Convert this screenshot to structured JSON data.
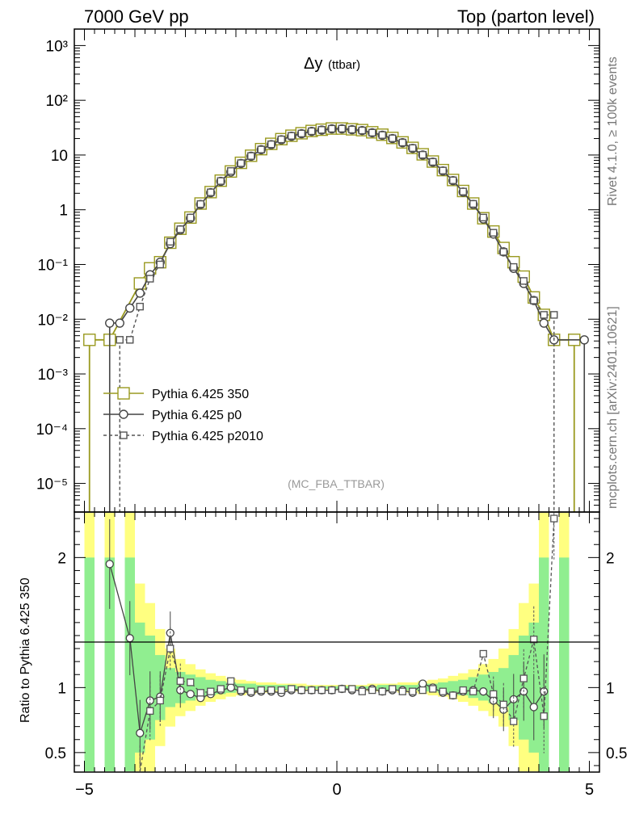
{
  "header": {
    "left": "7000 GeV pp",
    "right": "Top (parton level)"
  },
  "plot_title": "Δy",
  "plot_title_sub": "(ttbar)",
  "analysis_tag": "(MC_FBA_TTBAR)",
  "side_label_top": "Rivet 4.1.0, ≥ 100k events",
  "side_label_bottom": "mcplots.cern.ch [arXiv:2401.10621]",
  "colors": {
    "ref": "#9a9a20",
    "p0": "#444444",
    "p2010": "#555555",
    "band_inner": "#90ee90",
    "band_outer": "#ffff80"
  },
  "chart_data": [
    {
      "type": "line",
      "panel": "main",
      "title": "Δy (ttbar)",
      "xlabel": "",
      "ylabel": "",
      "xlim": [
        -5.2,
        5.2
      ],
      "ylim": [
        3e-06,
        2000
      ],
      "yscale": "log",
      "x_ticks": [
        -5,
        0,
        5
      ],
      "y_tick_labels": [
        "10⁻⁵",
        "10⁻⁴",
        "10⁻³",
        "10⁻²",
        "10⁻¹",
        "1",
        "10",
        "10²",
        "10³"
      ],
      "legend": {
        "placement": "lower-left",
        "entries": [
          "Pythia 6.425 350",
          "Pythia 6.425 p0",
          "Pythia 6.425 p2010"
        ]
      },
      "series": [
        {
          "name": "Pythia 6.425 350",
          "style": "solid-square",
          "points": [
            [
              -4.9,
              0.0042
            ],
            [
              -4.5,
              0.0042
            ],
            [
              -3.9,
              0.045
            ],
            [
              -3.7,
              0.085
            ],
            [
              -3.5,
              0.11
            ],
            [
              -3.3,
              0.25
            ],
            [
              -3.1,
              0.45
            ],
            [
              -2.9,
              0.72
            ],
            [
              -2.7,
              1.3
            ],
            [
              -2.5,
              2.1
            ],
            [
              -2.3,
              3.4
            ],
            [
              -2.1,
              5.0
            ],
            [
              -1.9,
              7.2
            ],
            [
              -1.7,
              9.7
            ],
            [
              -1.5,
              12.8
            ],
            [
              -1.3,
              16.0
            ],
            [
              -1.1,
              19.5
            ],
            [
              -0.9,
              22.5
            ],
            [
              -0.7,
              25.0
            ],
            [
              -0.5,
              27.5
            ],
            [
              -0.3,
              29.0
            ],
            [
              -0.1,
              30.5
            ],
            [
              0.1,
              30.5
            ],
            [
              0.3,
              29.5
            ],
            [
              0.5,
              28.5
            ],
            [
              0.7,
              26.0
            ],
            [
              0.9,
              23.5
            ],
            [
              1.1,
              20.5
            ],
            [
              1.3,
              17.0
            ],
            [
              1.5,
              13.5
            ],
            [
              1.7,
              10.3
            ],
            [
              1.9,
              7.6
            ],
            [
              2.1,
              5.3
            ],
            [
              2.3,
              3.5
            ],
            [
              2.5,
              2.2
            ],
            [
              2.7,
              1.3
            ],
            [
              2.9,
              0.7
            ],
            [
              3.1,
              0.4
            ],
            [
              3.3,
              0.2
            ],
            [
              3.5,
              0.11
            ],
            [
              3.7,
              0.06
            ],
            [
              3.9,
              0.025
            ],
            [
              4.1,
              0.012
            ],
            [
              4.3,
              0.0042
            ],
            [
              4.7,
              0.0042
            ]
          ]
        },
        {
          "name": "Pythia 6.425 p0",
          "style": "solid-circle",
          "points": [
            [
              -4.5,
              0.0085
            ],
            [
              -4.3,
              0.0085
            ],
            [
              -4.1,
              0.016
            ],
            [
              -3.9,
              0.03
            ],
            [
              -3.7,
              0.065
            ],
            [
              -3.5,
              0.11
            ],
            [
              -3.3,
              0.24
            ],
            [
              -3.1,
              0.43
            ],
            [
              -2.9,
              0.7
            ],
            [
              -2.7,
              1.25
            ],
            [
              -2.5,
              2.05
            ],
            [
              -2.3,
              3.3
            ],
            [
              -2.1,
              4.9
            ],
            [
              -1.9,
              7.0
            ],
            [
              -1.7,
              9.5
            ],
            [
              -1.5,
              12.5
            ],
            [
              -1.3,
              15.5
            ],
            [
              -1.1,
              19.0
            ],
            [
              -0.9,
              22.0
            ],
            [
              -0.7,
              24.5
            ],
            [
              -0.5,
              27.0
            ],
            [
              -0.3,
              28.5
            ],
            [
              -0.1,
              30.0
            ],
            [
              0.1,
              30.0
            ],
            [
              0.3,
              29.0
            ],
            [
              0.5,
              28.0
            ],
            [
              0.7,
              25.5
            ],
            [
              0.9,
              23.0
            ],
            [
              1.1,
              20.0
            ],
            [
              1.3,
              16.8
            ],
            [
              1.5,
              13.2
            ],
            [
              1.7,
              10.0
            ],
            [
              1.9,
              7.4
            ],
            [
              2.1,
              5.1
            ],
            [
              2.3,
              3.4
            ],
            [
              2.5,
              2.1
            ],
            [
              2.7,
              1.25
            ],
            [
              2.9,
              0.68
            ],
            [
              3.1,
              0.36
            ],
            [
              3.3,
              0.17
            ],
            [
              3.5,
              0.085
            ],
            [
              3.7,
              0.045
            ],
            [
              3.9,
              0.022
            ],
            [
              4.1,
              0.0085
            ],
            [
              4.3,
              0.0042
            ],
            [
              4.9,
              0.0042
            ]
          ]
        },
        {
          "name": "Pythia 6.425 p2010",
          "style": "dashed-square",
          "points": [
            [
              -4.3,
              0.0042
            ],
            [
              -4.1,
              0.0042
            ],
            [
              -3.9,
              0.017
            ],
            [
              -3.7,
              0.055
            ],
            [
              -3.5,
              0.1
            ],
            [
              -3.3,
              0.26
            ],
            [
              -3.1,
              0.44
            ],
            [
              -2.9,
              0.72
            ],
            [
              -2.7,
              1.27
            ],
            [
              -2.5,
              2.08
            ],
            [
              -2.3,
              3.35
            ],
            [
              -2.1,
              5.1
            ],
            [
              -1.9,
              7.1
            ],
            [
              -1.7,
              9.6
            ],
            [
              -1.5,
              12.6
            ],
            [
              -1.3,
              15.7
            ],
            [
              -1.1,
              19.3
            ],
            [
              -0.9,
              22.4
            ],
            [
              -0.7,
              24.7
            ],
            [
              -0.5,
              27.2
            ],
            [
              -0.3,
              28.8
            ],
            [
              -0.1,
              30.2
            ],
            [
              0.1,
              30.3
            ],
            [
              0.3,
              29.2
            ],
            [
              0.5,
              28.1
            ],
            [
              0.7,
              25.6
            ],
            [
              0.9,
              23.2
            ],
            [
              1.1,
              20.2
            ],
            [
              1.3,
              16.9
            ],
            [
              1.5,
              13.4
            ],
            [
              1.7,
              10.1
            ],
            [
              1.9,
              7.5
            ],
            [
              2.1,
              5.2
            ],
            [
              2.3,
              3.45
            ],
            [
              2.5,
              2.15
            ],
            [
              2.7,
              1.28
            ],
            [
              2.9,
              0.72
            ],
            [
              3.1,
              0.38
            ],
            [
              3.3,
              0.17
            ],
            [
              3.5,
              0.09
            ],
            [
              3.7,
              0.05
            ],
            [
              3.9,
              0.022
            ],
            [
              4.1,
              0.012
            ],
            [
              4.3,
              0.012
            ]
          ]
        }
      ]
    },
    {
      "type": "line",
      "panel": "ratio",
      "title": "",
      "xlabel": "",
      "ylabel": "Ratio to Pythia 6.425 350",
      "xlim": [
        -5.2,
        5.2
      ],
      "ylim": [
        0.35,
        2.35
      ],
      "x_ticks": [
        -5,
        0,
        5
      ],
      "y_ticks": [
        0.5,
        1,
        2
      ],
      "y_tick_labels": [
        "0.5",
        "1",
        "2"
      ],
      "band_edges": [
        -5.0,
        -4.8,
        -4.6,
        -4.4,
        -4.2,
        -4.0,
        -3.8,
        -3.6,
        -3.4,
        -3.2,
        -3.0,
        -2.8,
        -2.6,
        -2.4,
        -2.2,
        -2.0,
        -1.8,
        -1.6,
        -1.4,
        -1.2,
        -1.0,
        -0.8,
        -0.6,
        -0.4,
        -0.2,
        0.0,
        0.2,
        0.4,
        0.6,
        0.8,
        1.0,
        1.2,
        1.4,
        1.6,
        1.8,
        2.0,
        2.2,
        2.4,
        2.6,
        2.8,
        3.0,
        3.2,
        3.4,
        3.6,
        3.8,
        4.0,
        4.2,
        4.4,
        4.6,
        4.8
      ],
      "band_inner": [
        2.0,
        0,
        2.0,
        0,
        2.0,
        1.5,
        1.4,
        1.25,
        1.15,
        1.12,
        1.1,
        1.08,
        1.06,
        1.05,
        1.04,
        1.03,
        1.03,
        1.02,
        1.02,
        1.02,
        1.02,
        1.01,
        1.01,
        1.01,
        1.01,
        1.01,
        1.01,
        1.01,
        1.01,
        1.02,
        1.02,
        1.02,
        1.02,
        1.03,
        1.03,
        1.04,
        1.05,
        1.06,
        1.08,
        1.1,
        1.12,
        1.15,
        1.25,
        1.4,
        1.5,
        2.0,
        0,
        2.0,
        0
      ],
      "band_outer": [
        2.35,
        0,
        2.35,
        0,
        2.35,
        1.8,
        1.65,
        1.45,
        1.3,
        1.22,
        1.18,
        1.14,
        1.11,
        1.09,
        1.07,
        1.06,
        1.05,
        1.04,
        1.04,
        1.03,
        1.03,
        1.03,
        1.02,
        1.02,
        1.02,
        1.02,
        1.02,
        1.02,
        1.03,
        1.03,
        1.03,
        1.04,
        1.04,
        1.05,
        1.06,
        1.07,
        1.09,
        1.11,
        1.14,
        1.18,
        1.22,
        1.3,
        1.45,
        1.65,
        1.8,
        2.35,
        0,
        2.35,
        0
      ],
      "series": [
        {
          "name": "Pythia 6.425 p0",
          "style": "solid-circle",
          "points": [
            [
              -4.5,
              1.95
            ],
            [
              -4.1,
              1.38
            ],
            [
              -3.9,
              0.65
            ],
            [
              -3.7,
              0.9
            ],
            [
              -3.5,
              0.93
            ],
            [
              -3.3,
              1.42
            ],
            [
              -3.1,
              0.98
            ],
            [
              -2.9,
              0.95
            ],
            [
              -2.7,
              0.92
            ],
            [
              -2.5,
              0.95
            ],
            [
              -2.3,
              0.98
            ],
            [
              -2.1,
              1.0
            ],
            [
              -1.9,
              0.97
            ],
            [
              -1.7,
              0.96
            ],
            [
              -1.5,
              0.97
            ],
            [
              -1.3,
              0.97
            ],
            [
              -1.1,
              0.96
            ],
            [
              -0.9,
              0.98
            ],
            [
              -0.7,
              0.98
            ],
            [
              -0.5,
              0.98
            ],
            [
              -0.3,
              0.98
            ],
            [
              -0.1,
              0.98
            ],
            [
              0.1,
              0.99
            ],
            [
              0.3,
              0.98
            ],
            [
              0.5,
              0.98
            ],
            [
              0.7,
              0.99
            ],
            [
              0.9,
              0.97
            ],
            [
              1.1,
              0.98
            ],
            [
              1.3,
              0.98
            ],
            [
              1.5,
              0.96
            ],
            [
              1.7,
              1.03
            ],
            [
              1.9,
              1.0
            ],
            [
              2.1,
              0.96
            ],
            [
              2.3,
              0.94
            ],
            [
              2.5,
              0.97
            ],
            [
              2.7,
              0.98
            ],
            [
              2.9,
              0.97
            ],
            [
              3.1,
              0.9
            ],
            [
              3.3,
              0.83
            ],
            [
              3.5,
              0.91
            ],
            [
              3.7,
              0.97
            ],
            [
              3.9,
              0.85
            ],
            [
              4.1,
              0.97
            ]
          ]
        },
        {
          "name": "Pythia 6.425 p2010",
          "style": "dashed-square",
          "points": [
            [
              -3.9,
              0.3
            ],
            [
              -3.7,
              0.82
            ],
            [
              -3.5,
              0.9
            ],
            [
              -3.3,
              1.3
            ],
            [
              -3.1,
              1.05
            ],
            [
              -2.9,
              1.04
            ],
            [
              -2.7,
              0.96
            ],
            [
              -2.5,
              0.97
            ],
            [
              -2.3,
              0.99
            ],
            [
              -2.1,
              1.05
            ],
            [
              -1.9,
              0.98
            ],
            [
              -1.7,
              0.97
            ],
            [
              -1.5,
              0.98
            ],
            [
              -1.3,
              0.98
            ],
            [
              -1.1,
              0.98
            ],
            [
              -0.9,
              0.99
            ],
            [
              -0.7,
              0.98
            ],
            [
              -0.5,
              0.98
            ],
            [
              -0.3,
              0.98
            ],
            [
              -0.1,
              0.98
            ],
            [
              0.1,
              0.99
            ],
            [
              0.3,
              0.99
            ],
            [
              0.5,
              0.97
            ],
            [
              0.7,
              0.98
            ],
            [
              0.9,
              0.97
            ],
            [
              1.1,
              0.99
            ],
            [
              1.3,
              0.97
            ],
            [
              1.5,
              0.97
            ],
            [
              1.7,
              0.98
            ],
            [
              1.9,
              0.99
            ],
            [
              2.1,
              0.97
            ],
            [
              2.3,
              0.94
            ],
            [
              2.5,
              0.98
            ],
            [
              2.7,
              0.97
            ],
            [
              2.9,
              1.26
            ],
            [
              3.1,
              0.95
            ],
            [
              3.3,
              0.87
            ],
            [
              3.5,
              0.74
            ],
            [
              3.7,
              1.07
            ],
            [
              3.9,
              1.37
            ],
            [
              4.1,
              0.78
            ],
            [
              4.3,
              2.3
            ]
          ]
        }
      ]
    }
  ]
}
